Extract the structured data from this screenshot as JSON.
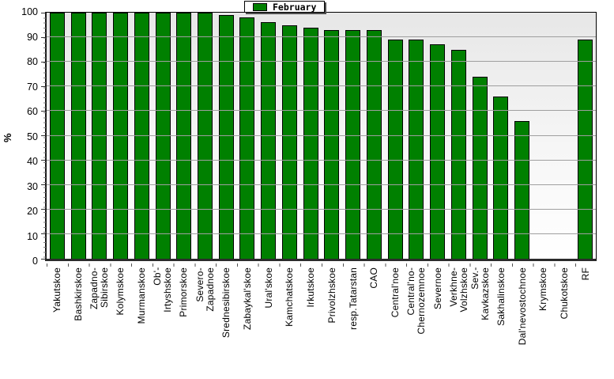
{
  "legend": {
    "label": "February",
    "swatch_color": "#008000"
  },
  "y_axis": {
    "label": "%",
    "ticks": [
      "0",
      "10",
      "20",
      "30",
      "40",
      "50",
      "60",
      "70",
      "80",
      "90",
      "100"
    ]
  },
  "colors": {
    "bar": "#008000",
    "gridline": "#9f9f9f",
    "plot_bg_top": "#e7e7e7",
    "plot_bg_bottom": "#ffffff"
  },
  "chart_data": {
    "type": "bar",
    "title": "",
    "xlabel": "",
    "ylabel": "%",
    "ylim": [
      0,
      100
    ],
    "grid": true,
    "legend_position": "top-center",
    "legend_entries": [
      "February"
    ],
    "categories": [
      "Yakutskoe",
      "Bashkirskoe",
      "Zapadno-\nSibirskoe",
      "Kolymskoe",
      "Murmanskoe",
      "Ob'-\nIrtyshskoe",
      "Primorskoe",
      "Severo-\nZapadnoe",
      "Srednesibirskoe",
      "Zabaykal'skoe",
      "Ural'skoe",
      "Kamchatskoe",
      "Irkutskoe",
      "Privolzhskoe",
      "resp.Tatarstan",
      "CAO",
      "Central'noe",
      "Central'no-\nChernozemnoe",
      "Severnoe",
      "Verkhne-\nVolzhskoe",
      "Sev.-\nKavkazskoe",
      "Sakhalinskoe",
      "Dal'nevostochnoe",
      "Krymskoe",
      "Chukotskoe",
      "RF"
    ],
    "series": [
      {
        "name": "February",
        "values": [
          100,
          100,
          100,
          100,
          100,
          100,
          100,
          100,
          99,
          98,
          96,
          95,
          94,
          93,
          93,
          93,
          89,
          89,
          87,
          85,
          74,
          66,
          56,
          0,
          0,
          89
        ]
      }
    ]
  }
}
